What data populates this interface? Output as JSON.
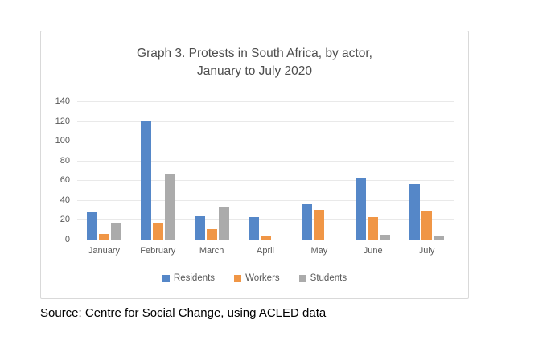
{
  "chart_data": {
    "type": "bar",
    "title_lines": [
      "Graph 3. Protests in South Africa, by actor,",
      "January to July 2020"
    ],
    "categories": [
      "January",
      "February",
      "March",
      "April",
      "May",
      "June",
      "July"
    ],
    "series": [
      {
        "name": "Residents",
        "color": "#5587C8",
        "values": [
          28,
          120,
          24,
          23,
          36,
          63,
          56
        ]
      },
      {
        "name": "Workers",
        "color": "#F09646",
        "values": [
          6,
          17,
          11,
          4,
          30,
          23,
          29
        ]
      },
      {
        "name": "Students",
        "color": "#ABABAB",
        "values": [
          17,
          67,
          33,
          0,
          0,
          5,
          4
        ]
      }
    ],
    "ylim": [
      0,
      140
    ],
    "yticks": [
      0,
      20,
      40,
      60,
      80,
      100,
      120,
      140
    ],
    "xlabel": "",
    "ylabel": "",
    "grid": true,
    "legend_position": "bottom"
  },
  "page": {
    "source_note": "Source: Centre for Social Change, using ACLED data"
  },
  "colors": {
    "residents": "#5587C8",
    "workers": "#F09646",
    "students": "#ABABAB",
    "gridline": "#e9e9e9",
    "axis_text": "#595959",
    "title_text": "#4d4d4d",
    "card_border": "#d9d9d9"
  }
}
